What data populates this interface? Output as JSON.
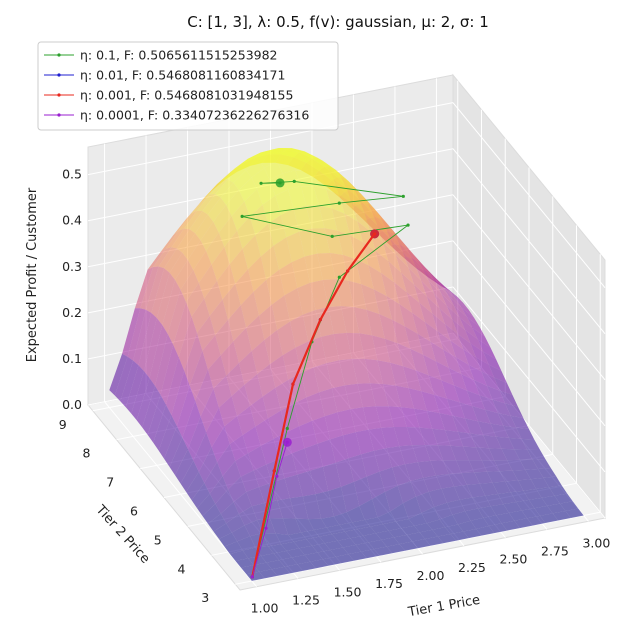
{
  "chart_data": {
    "type": "surface",
    "title": "C: [1, 3], λ: 0.5, f(v): gaussian, μ: 2, σ: 1",
    "xlabel": "Tier 1 Price",
    "ylabel": "Tier 2 Price",
    "zlabel": "Expected Profit / Customer",
    "xlim": [
      0.9,
      3.1
    ],
    "ylim": [
      2.8,
      9.2
    ],
    "zlim": [
      0.0,
      0.56
    ],
    "x_ticks": [
      "1.00",
      "1.25",
      "1.50",
      "1.75",
      "2.00",
      "2.25",
      "2.50",
      "2.75",
      "3.00"
    ],
    "y_ticks": [
      "3",
      "4",
      "5",
      "6",
      "7",
      "8",
      "9"
    ],
    "z_ticks": [
      "0.0",
      "0.1",
      "0.2",
      "0.3",
      "0.4",
      "0.5"
    ],
    "colormap": "plasma",
    "legend_position": "upper-left",
    "series": [
      {
        "name": "η: 0.1, F: 0.5065611515253982",
        "color": "#2ca02c",
        "path": [
          [
            1.02,
            3.12,
            0.0
          ],
          [
            1.5,
            5.0,
            0.17
          ],
          [
            1.82,
            6.2,
            0.26
          ],
          [
            2.1,
            7.0,
            0.33
          ],
          [
            2.6,
            7.6,
            0.37
          ],
          [
            2.1,
            7.3,
            0.4
          ],
          [
            1.6,
            7.6,
            0.46
          ],
          [
            2.2,
            7.7,
            0.44
          ],
          [
            2.6,
            7.8,
            0.42
          ],
          [
            2.0,
            8.2,
            0.47
          ],
          [
            1.8,
            8.2,
            0.48
          ],
          [
            1.9,
            8.1,
            0.48
          ]
        ]
      },
      {
        "name": "η: 0.01, F: 0.5468081160834171",
        "color": "#1f1fd0",
        "path": [
          [
            1.02,
            3.12,
            0.0
          ],
          [
            1.35,
            4.5,
            0.12
          ],
          [
            1.62,
            5.6,
            0.22
          ],
          [
            1.9,
            6.4,
            0.29
          ],
          [
            2.15,
            7.0,
            0.34
          ],
          [
            2.37,
            7.4,
            0.38
          ]
        ]
      },
      {
        "name": "η: 0.001, F: 0.5468081031948155",
        "color": "#e8281e",
        "path": [
          [
            1.02,
            3.12,
            0.0
          ],
          [
            1.35,
            4.5,
            0.12
          ],
          [
            1.62,
            5.6,
            0.22
          ],
          [
            1.9,
            6.4,
            0.29
          ],
          [
            2.15,
            7.0,
            0.34
          ],
          [
            2.37,
            7.4,
            0.38
          ]
        ]
      },
      {
        "name": "η: 0.0001, F: 0.33407236226276316",
        "color": "#9a1fd0",
        "path": [
          [
            1.02,
            3.12,
            0.0
          ],
          [
            1.2,
            3.8,
            0.05
          ],
          [
            1.38,
            4.6,
            0.1
          ],
          [
            1.5,
            5.0,
            0.14
          ]
        ]
      }
    ]
  }
}
